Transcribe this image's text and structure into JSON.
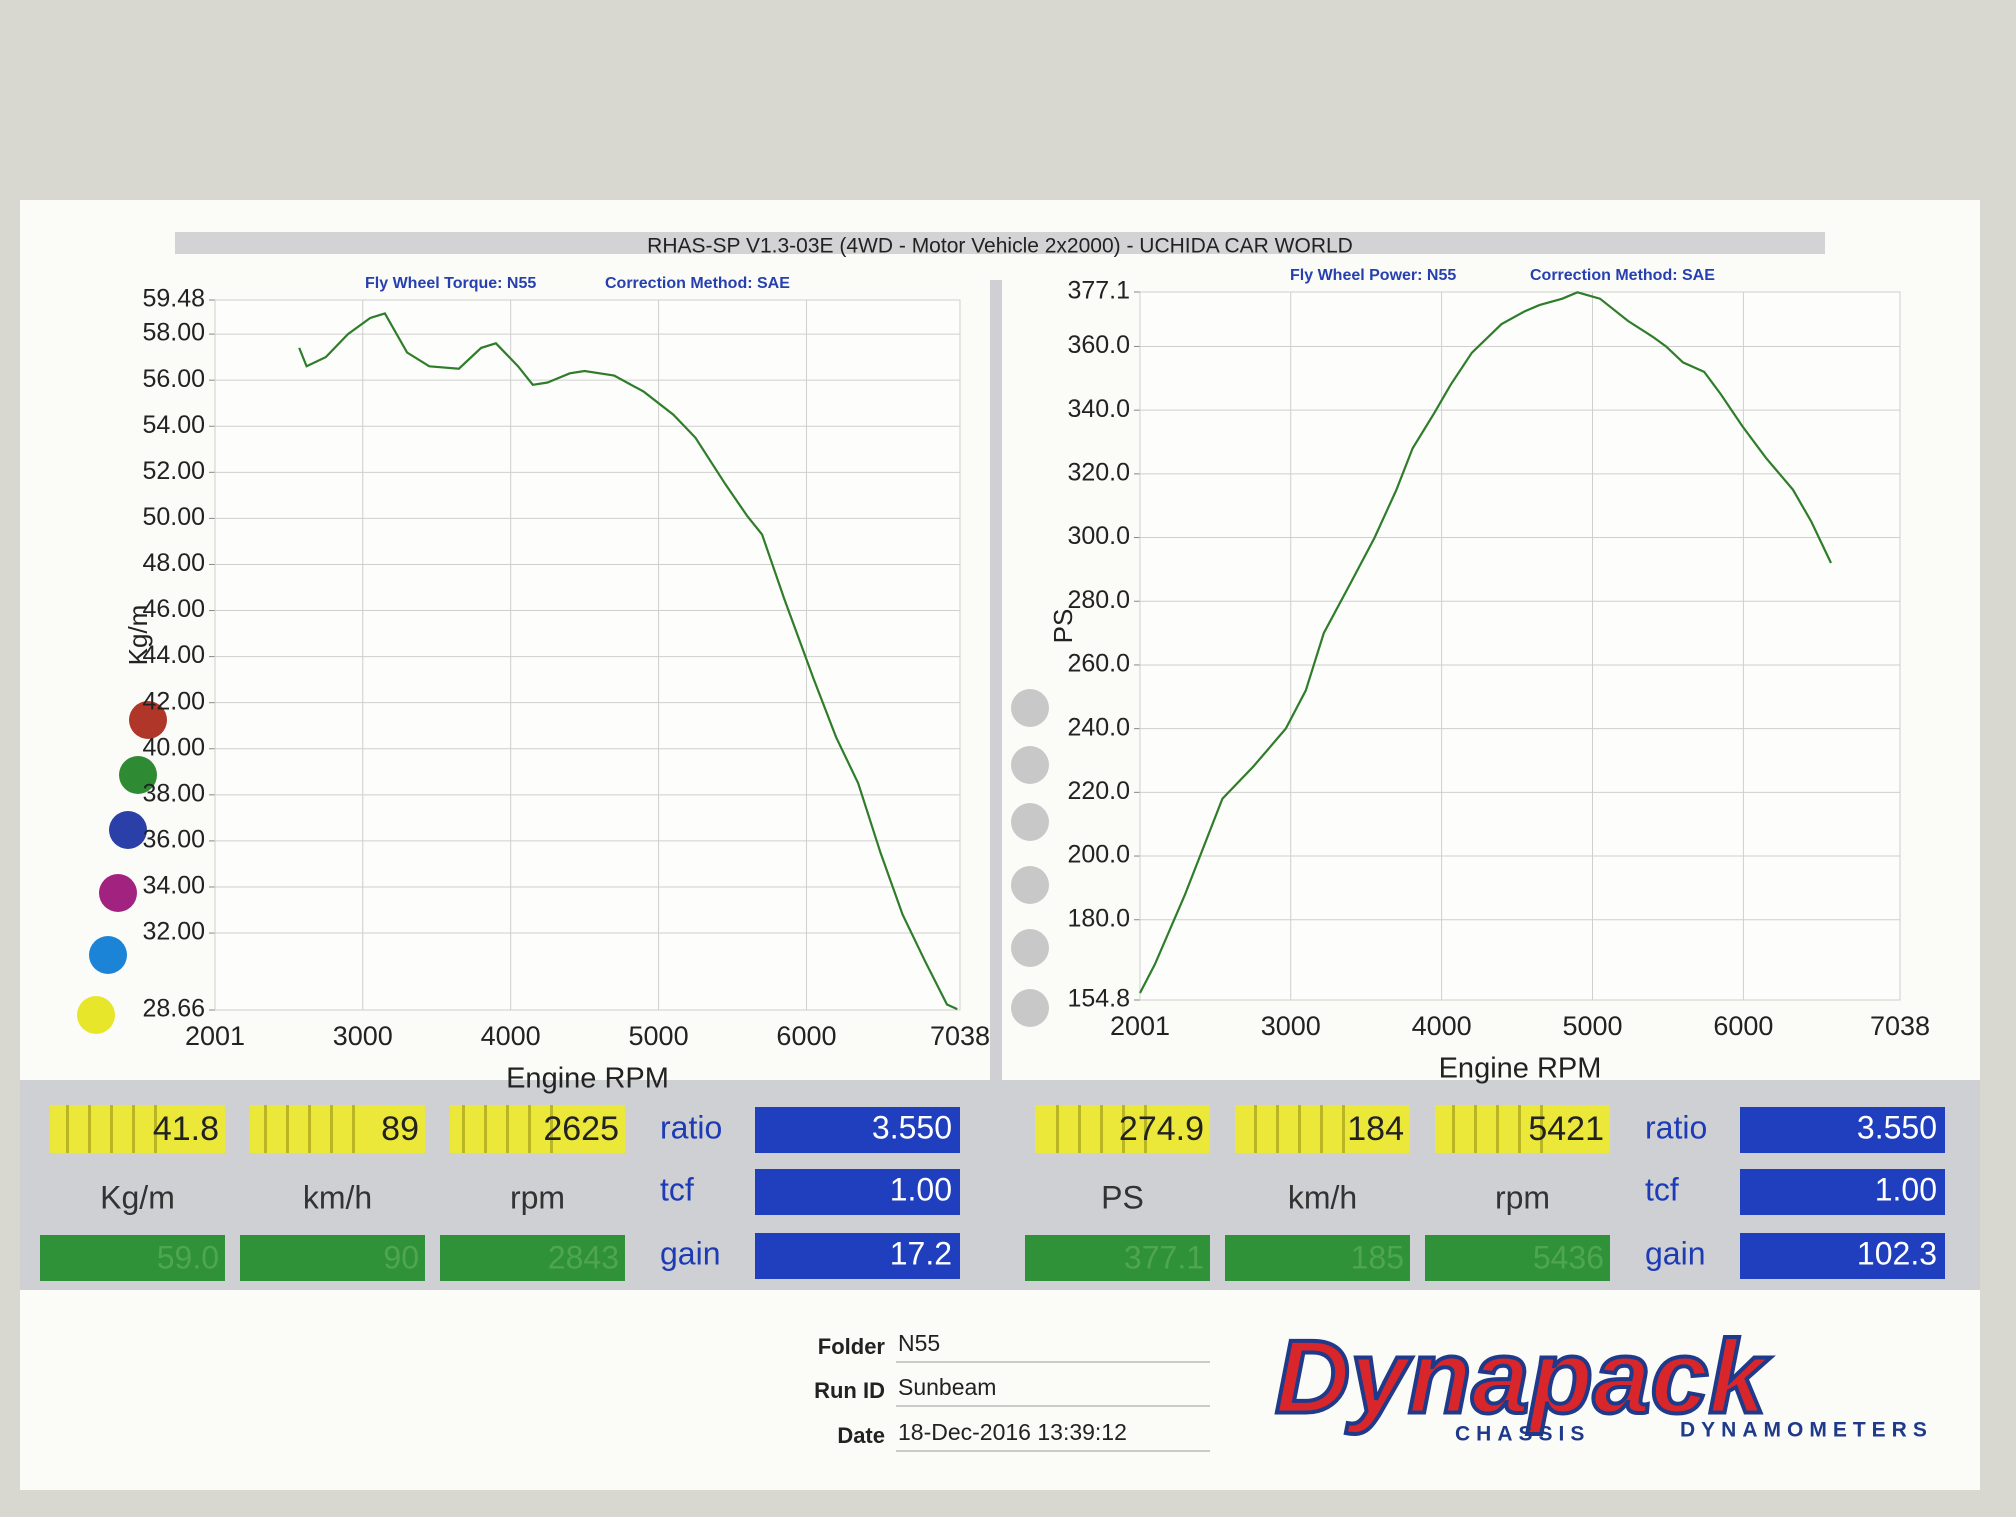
{
  "header": {
    "title": "RHAS-SP V1.3-03E  (4WD - Motor Vehicle 2x2000) - UCHIDA CAR WORLD"
  },
  "chart_data": [
    {
      "type": "line",
      "subtitle": "Fly Wheel Torque: N55",
      "note": "Correction Method: SAE",
      "x_label": "Engine RPM",
      "y_label": "Kg/m",
      "grid": true,
      "xlim": [
        2001,
        7038
      ],
      "xticks": [
        2001,
        3000,
        4000,
        5000,
        6000,
        7038
      ],
      "ylim": [
        28.66,
        59.48
      ],
      "yticks": [
        28.66,
        {
          "value": 32,
          "label": "32.00"
        },
        {
          "value": 34,
          "label": "34.00"
        },
        {
          "value": 36,
          "label": "36.00"
        },
        {
          "value": 38,
          "label": "38.00"
        },
        {
          "value": 40,
          "label": "40.00"
        },
        {
          "value": 42,
          "label": "42.00"
        },
        {
          "value": 44,
          "label": "44.00"
        },
        {
          "value": 46,
          "label": "46.00"
        },
        {
          "value": 48,
          "label": "48.00"
        },
        {
          "value": 50,
          "label": "50.00"
        },
        {
          "value": 52,
          "label": "52.00"
        },
        {
          "value": 54,
          "label": "54.00"
        },
        {
          "value": 56,
          "label": "56.00"
        },
        {
          "value": 58,
          "label": "58.00"
        },
        59.48
      ],
      "x": [
        2570,
        2620,
        2750,
        2900,
        3050,
        3150,
        3300,
        3450,
        3650,
        3800,
        3900,
        4050,
        4150,
        4250,
        4400,
        4500,
        4700,
        4900,
        5100,
        5250,
        5450,
        5600,
        5700,
        5850,
        6050,
        6200,
        6350,
        6500,
        6650,
        6800,
        6950,
        7020
      ],
      "series": [
        {
          "color": "#2f7d2a",
          "values": [
            57.4,
            56.6,
            57.0,
            58.0,
            58.7,
            58.9,
            57.2,
            56.6,
            56.5,
            57.4,
            57.6,
            56.6,
            55.8,
            55.9,
            56.3,
            56.4,
            56.2,
            55.5,
            54.5,
            53.5,
            51.5,
            50.1,
            49.3,
            46.5,
            43.0,
            40.5,
            38.5,
            35.5,
            32.8,
            30.8,
            28.9,
            28.7
          ]
        }
      ]
    },
    {
      "type": "line",
      "subtitle": "Fly Wheel Power: N55",
      "note": "Correction Method: SAE",
      "x_label": "Engine RPM",
      "y_label": "PS",
      "grid": true,
      "xlim": [
        2001,
        7038
      ],
      "xticks": [
        2001,
        3000,
        4000,
        5000,
        6000,
        7038
      ],
      "ylim": [
        154.8,
        377.1
      ],
      "yticks": [
        154.8,
        {
          "value": 180,
          "label": "180.0"
        },
        {
          "value": 200,
          "label": "200.0"
        },
        {
          "value": 220,
          "label": "220.0"
        },
        {
          "value": 240,
          "label": "240.0"
        },
        {
          "value": 260,
          "label": "260.0"
        },
        {
          "value": 280,
          "label": "280.0"
        },
        {
          "value": 300,
          "label": "300.0"
        },
        {
          "value": 320,
          "label": "320.0"
        },
        {
          "value": 340,
          "label": "340.0"
        },
        {
          "value": 360,
          "label": "360.0"
        },
        377.1
      ],
      "x": [
        2001,
        2100,
        2300,
        2547,
        2750,
        2967,
        3100,
        3219,
        3400,
        3556,
        3700,
        3808,
        3950,
        4060,
        4200,
        4396,
        4550,
        4648,
        4800,
        4900,
        5050,
        5236,
        5400,
        5488,
        5600,
        5740,
        5850,
        5993,
        6150,
        6329,
        6450,
        6581
      ],
      "series": [
        {
          "color": "#2f7d2a",
          "values": [
            157,
            166,
            188,
            218,
            228,
            240,
            252,
            270,
            286,
            300,
            315,
            328,
            339,
            348,
            358,
            367,
            371,
            373,
            375,
            377,
            375,
            368,
            363,
            360,
            355,
            352,
            345,
            335,
            325,
            315,
            305,
            292
          ]
        }
      ]
    }
  ],
  "panels": [
    {
      "readouts": [
        {
          "value": "41.8",
          "unit": "Kg/m",
          "peak": "59.0"
        },
        {
          "value": "89",
          "unit": "km/h",
          "peak": "90"
        },
        {
          "value": "2625",
          "unit": "rpm",
          "peak": "2843"
        }
      ],
      "ratio_label": "ratio",
      "ratio": "3.550",
      "tcf_label": "tcf",
      "tcf": "1.00",
      "gain_label": "gain",
      "gain": "17.2"
    },
    {
      "readouts": [
        {
          "value": "274.9",
          "unit": "PS",
          "peak": "377.1"
        },
        {
          "value": "184",
          "unit": "km/h",
          "peak": "185"
        },
        {
          "value": "5421",
          "unit": "rpm",
          "peak": "5436"
        }
      ],
      "ratio_label": "ratio",
      "ratio": "3.550",
      "tcf_label": "tcf",
      "tcf": "1.00",
      "gain_label": "gain",
      "gain": "102.3"
    }
  ],
  "footer": {
    "folder_label": "Folder",
    "folder": "N55",
    "run_id_label": "Run ID",
    "run_id": "Sunbeam",
    "date_label": "Date",
    "date": "18-Dec-2016  13:39:12"
  },
  "logo": {
    "brand": "Dynapack",
    "left": "CHASSIS",
    "right": "DYNAMOMETERS"
  }
}
